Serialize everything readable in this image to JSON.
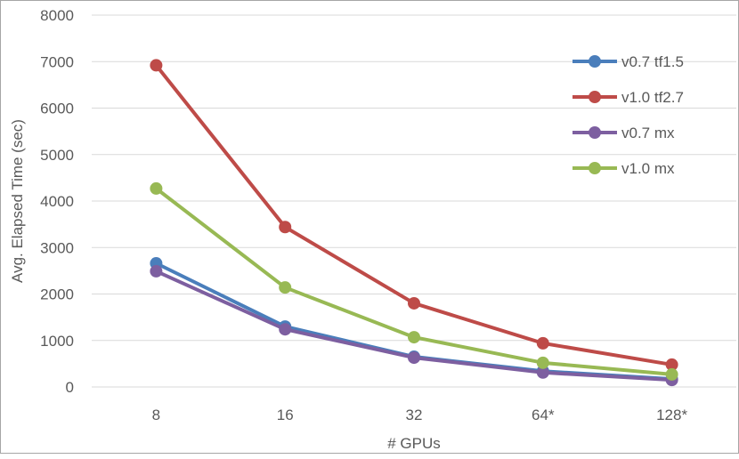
{
  "chart_data": {
    "type": "line",
    "xlabel": "# GPUs",
    "ylabel": "Avg. Elapsed Time (sec)",
    "categories": [
      "8",
      "16",
      "32",
      "64*",
      "128*"
    ],
    "ylim": [
      0,
      8000
    ],
    "yticks": [
      0,
      1000,
      2000,
      3000,
      4000,
      5000,
      6000,
      7000,
      8000
    ],
    "grid": true,
    "legend_position": "right",
    "series": [
      {
        "name": "v0.7 tf1.5",
        "color": "#4a7ebb",
        "values": [
          2660,
          1300,
          650,
          340,
          170
        ]
      },
      {
        "name": "v1.0 tf2.7",
        "color": "#be4b48",
        "values": [
          6920,
          3440,
          1800,
          940,
          480
        ]
      },
      {
        "name": "v0.7 mx",
        "color": "#7d5fa0",
        "values": [
          2490,
          1240,
          630,
          310,
          150
        ]
      },
      {
        "name": "v1.0 mx",
        "color": "#98b954",
        "values": [
          4270,
          2140,
          1070,
          520,
          270
        ]
      }
    ]
  }
}
